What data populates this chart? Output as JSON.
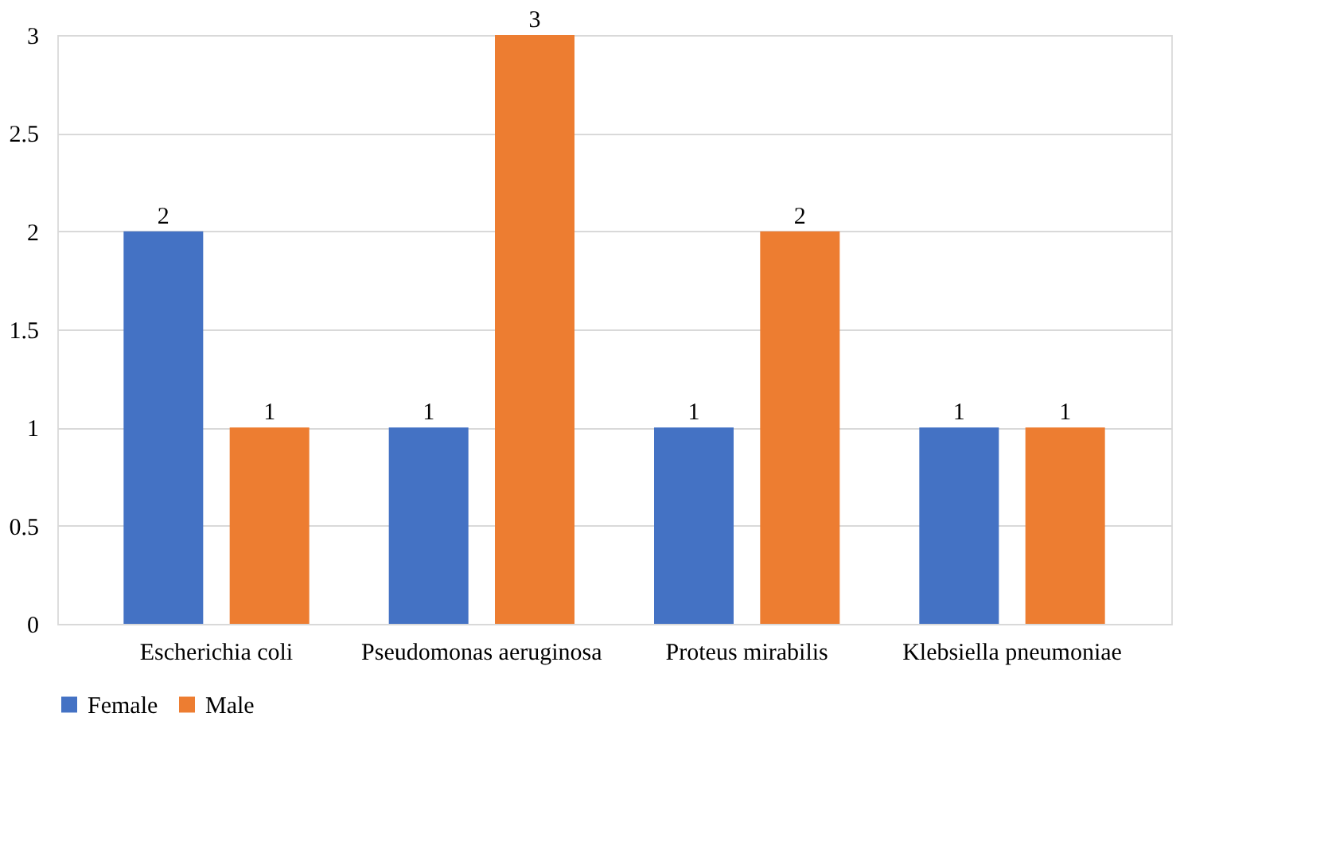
{
  "chart_data": {
    "type": "bar",
    "categories": [
      "Escherichia coli",
      "Pseudomonas aeruginosa",
      "Proteus mirabilis",
      "Klebsiella pneumoniae"
    ],
    "series": [
      {
        "name": "Female",
        "color": "#4472c4",
        "values": [
          2,
          1,
          1,
          1
        ]
      },
      {
        "name": "Male",
        "color": "#ed7d31",
        "values": [
          1,
          3,
          2,
          1
        ]
      }
    ],
    "ylim": [
      0,
      3
    ],
    "yticks": [
      0,
      0.5,
      1,
      1.5,
      2,
      2.5,
      3
    ],
    "grid": "y",
    "legend": "bottom",
    "data_labels": true
  }
}
